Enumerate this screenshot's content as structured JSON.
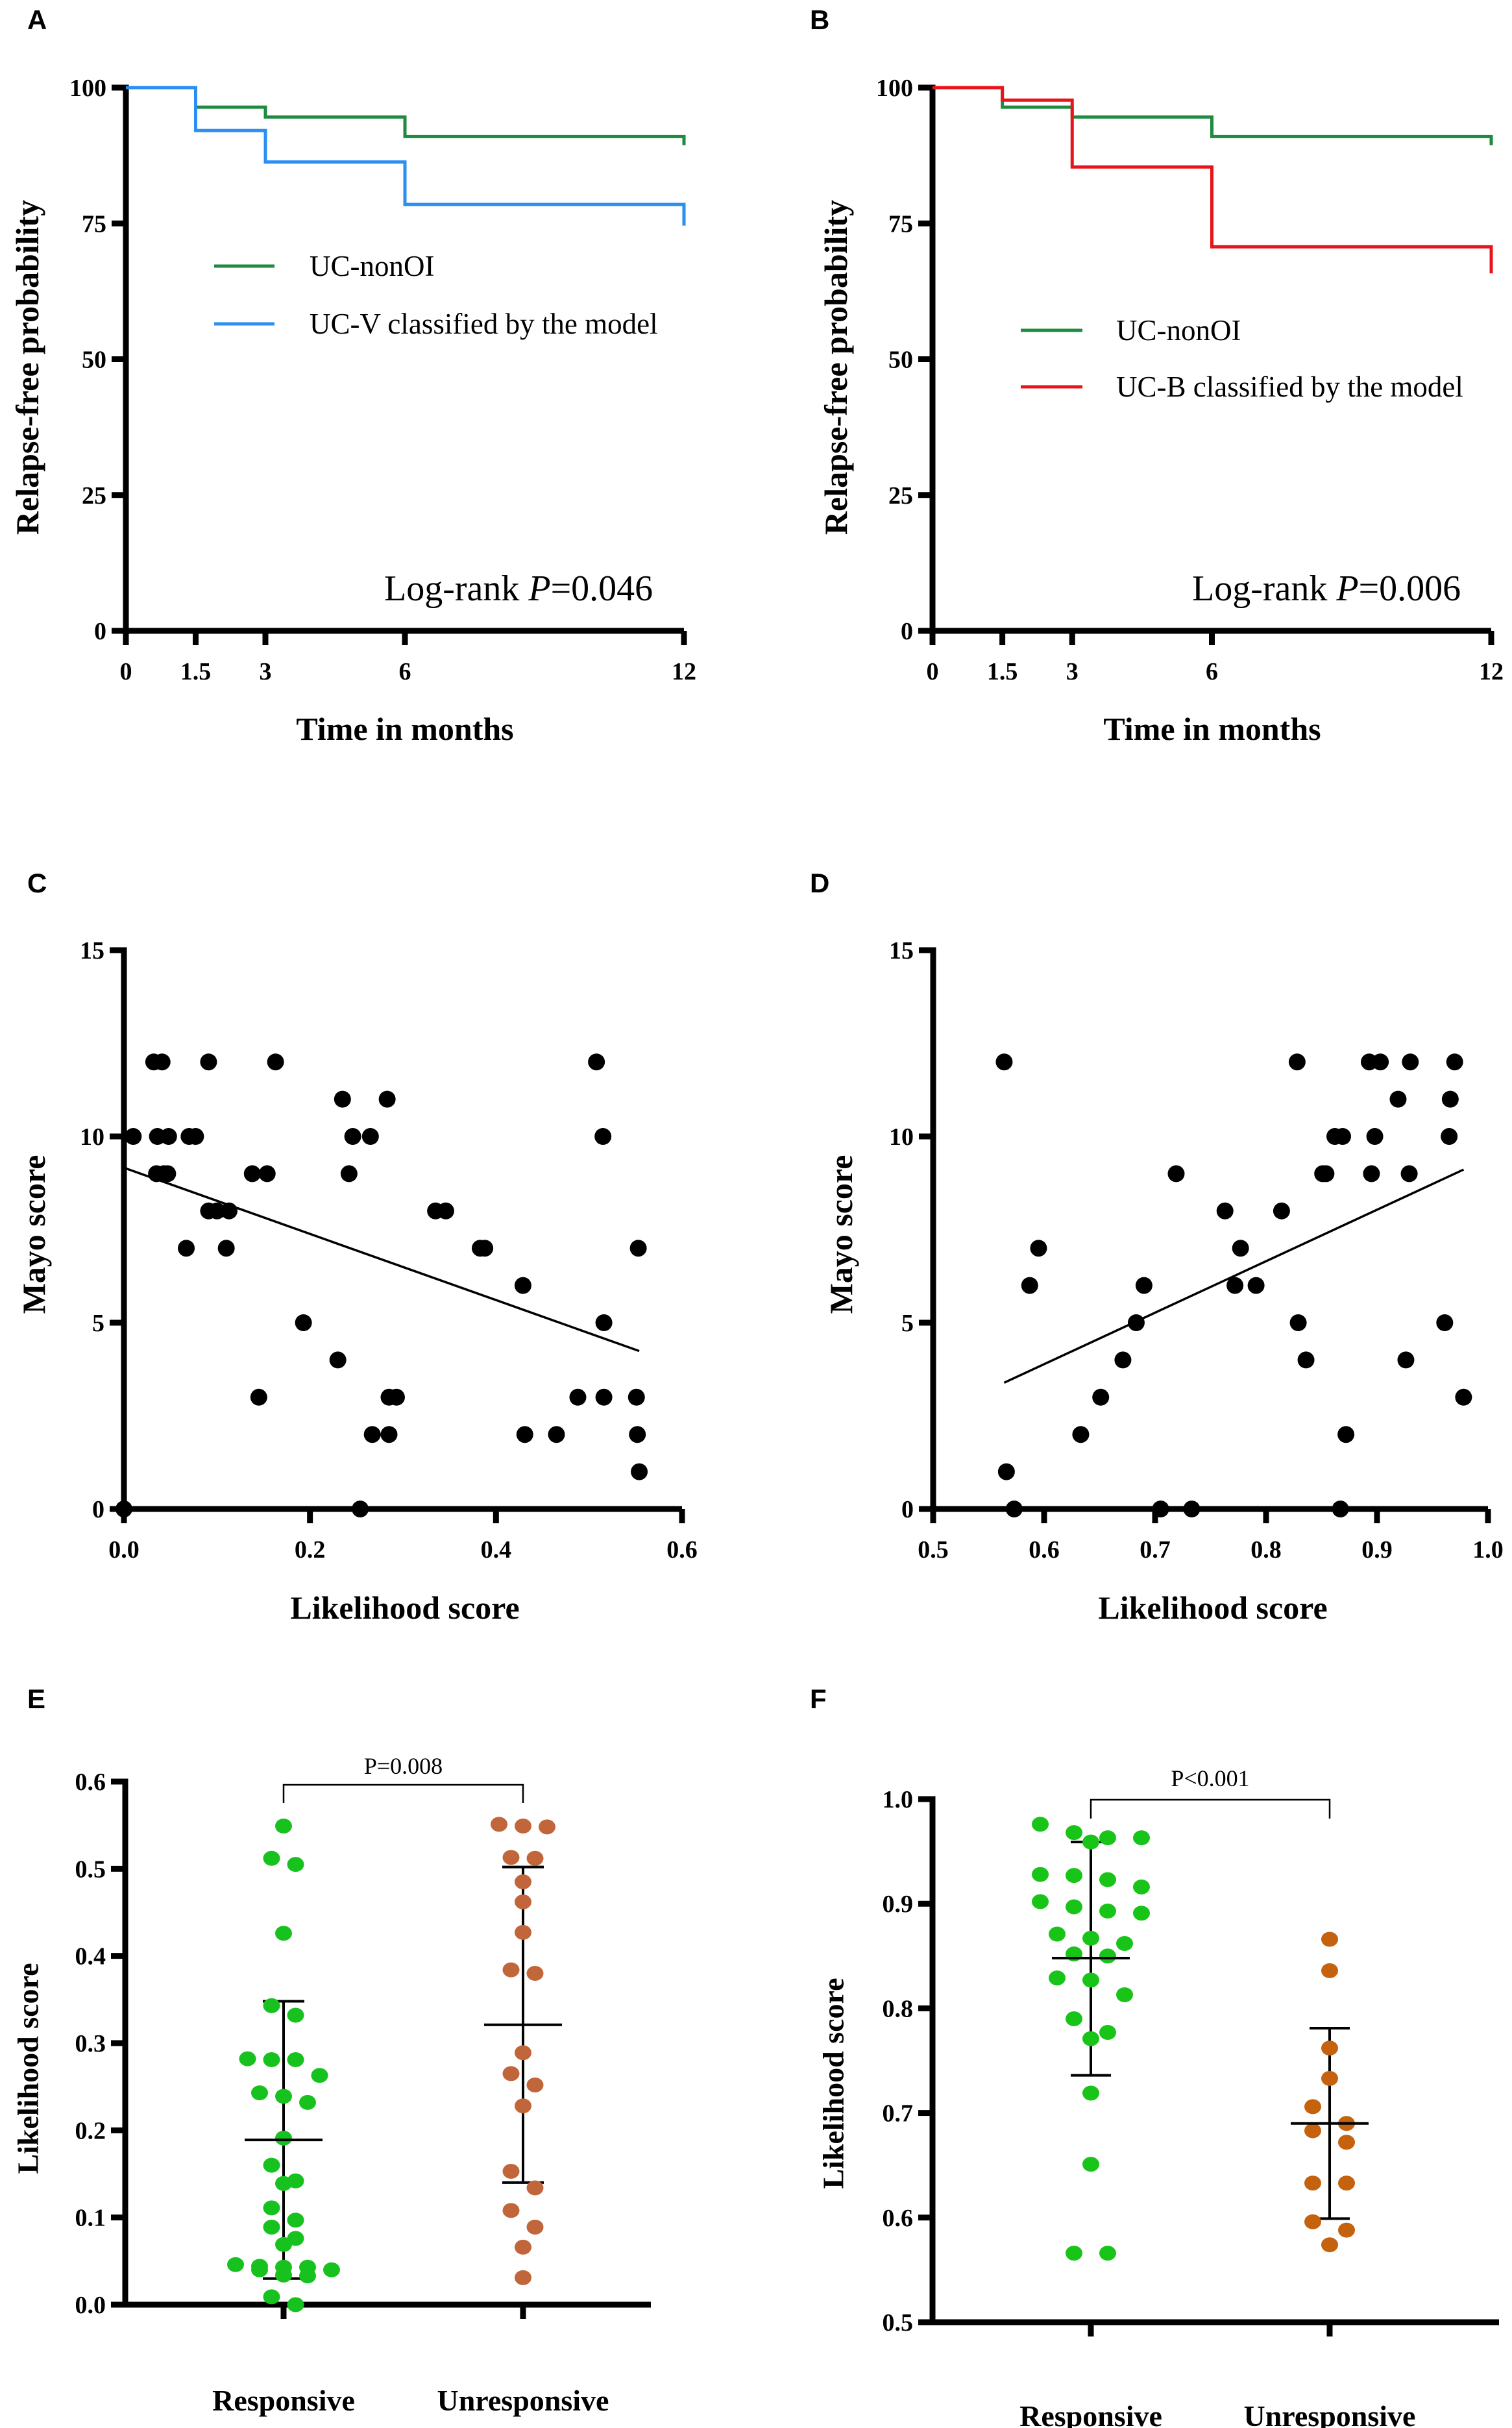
{
  "panel_letters": [
    "A",
    "B",
    "C",
    "D",
    "E",
    "F"
  ],
  "chart_data": [
    {
      "panel": "A",
      "type": "line",
      "subtype": "kaplan-meier",
      "xlabel": "Time in months",
      "ylabel": "Relapse-free probability",
      "xlim": [
        0,
        12
      ],
      "ylim": [
        0,
        100
      ],
      "xticks": [
        0,
        1.5,
        3,
        6,
        12
      ],
      "xtick_labels": [
        "0",
        "1.5",
        "3",
        "6",
        "12"
      ],
      "yticks": [
        0,
        25,
        50,
        75,
        100
      ],
      "ytick_labels": [
        "0",
        "25",
        "50",
        "75",
        "100"
      ],
      "legend_position": "center-right",
      "series": [
        {
          "name": "UC-nonOI",
          "color": "#1e8b3e",
          "steps": [
            [
              0,
              100
            ],
            [
              1.5,
              96.4
            ],
            [
              3,
              94.6
            ],
            [
              6,
              91.0
            ],
            [
              12,
              89.4
            ]
          ]
        },
        {
          "name": "UC-V classified by the model",
          "color": "#2a8ff0",
          "steps": [
            [
              0,
              100
            ],
            [
              1.5,
              92.1
            ],
            [
              3,
              86.3
            ],
            [
              6,
              78.5
            ],
            [
              12,
              74.6
            ]
          ]
        }
      ],
      "annotation": {
        "prefix": "Log-rank ",
        "italic": "P",
        "value": "=0.046"
      }
    },
    {
      "panel": "B",
      "type": "line",
      "subtype": "kaplan-meier",
      "xlabel": "Time in months",
      "ylabel": "Relapse-free probability",
      "xlim": [
        0,
        12
      ],
      "ylim": [
        0,
        100
      ],
      "xticks": [
        0,
        1.5,
        3,
        6,
        12
      ],
      "xtick_labels": [
        "0",
        "1.5",
        "3",
        "6",
        "12"
      ],
      "yticks": [
        0,
        25,
        50,
        75,
        100
      ],
      "ytick_labels": [
        "0",
        "25",
        "50",
        "75",
        "100"
      ],
      "legend_position": "center-right",
      "series": [
        {
          "name": "UC-nonOI",
          "color": "#1e8b3e",
          "steps": [
            [
              0,
              100
            ],
            [
              1.5,
              96.4
            ],
            [
              3,
              94.6
            ],
            [
              6,
              91.0
            ],
            [
              12,
              89.4
            ]
          ]
        },
        {
          "name": "UC-B classified by the model",
          "color": "#e8141b",
          "steps": [
            [
              0,
              100
            ],
            [
              1.5,
              97.7
            ],
            [
              3,
              85.4
            ],
            [
              6,
              70.7
            ],
            [
              12,
              65.8
            ]
          ]
        }
      ],
      "annotation": {
        "prefix": "Log-rank ",
        "italic": "P",
        "value": "=0.006"
      }
    },
    {
      "panel": "C",
      "type": "scatter",
      "xlabel": "Likelihood score",
      "ylabel": "Mayo score",
      "xlim": [
        0,
        0.6
      ],
      "ylim": [
        0,
        15
      ],
      "xticks": [
        0,
        0.2,
        0.4,
        0.6
      ],
      "xtick_labels": [
        "0.0",
        "0.2",
        "0.4",
        "0.6"
      ],
      "yticks": [
        0,
        5,
        10,
        15
      ],
      "ytick_labels": [
        "0",
        "5",
        "10",
        "15"
      ],
      "color": "#000000",
      "points": [
        [
          0.032,
          12
        ],
        [
          0.041,
          12
        ],
        [
          0.091,
          12
        ],
        [
          0.163,
          12
        ],
        [
          0.508,
          12
        ],
        [
          0.235,
          11
        ],
        [
          0.283,
          11
        ],
        [
          0.01,
          10
        ],
        [
          0.036,
          10
        ],
        [
          0.048,
          10
        ],
        [
          0.07,
          10
        ],
        [
          0.077,
          10
        ],
        [
          0.246,
          10
        ],
        [
          0.265,
          10
        ],
        [
          0.515,
          10
        ],
        [
          0.035,
          9
        ],
        [
          0.043,
          9
        ],
        [
          0.047,
          9
        ],
        [
          0.138,
          9
        ],
        [
          0.154,
          9
        ],
        [
          0.242,
          9
        ],
        [
          0.091,
          8
        ],
        [
          0.1,
          8
        ],
        [
          0.113,
          8
        ],
        [
          0.335,
          8
        ],
        [
          0.346,
          8
        ],
        [
          0.067,
          7
        ],
        [
          0.11,
          7
        ],
        [
          0.383,
          7
        ],
        [
          0.388,
          7
        ],
        [
          0.553,
          7
        ],
        [
          0.429,
          6
        ],
        [
          0.193,
          5
        ],
        [
          0.516,
          5
        ],
        [
          0.23,
          4
        ],
        [
          0.145,
          3
        ],
        [
          0.285,
          3
        ],
        [
          0.293,
          3
        ],
        [
          0.488,
          3
        ],
        [
          0.516,
          3
        ],
        [
          0.551,
          3
        ],
        [
          0.267,
          2
        ],
        [
          0.285,
          2
        ],
        [
          0.431,
          2
        ],
        [
          0.465,
          2
        ],
        [
          0.552,
          2
        ],
        [
          0.554,
          1
        ],
        [
          0.0,
          0
        ],
        [
          0.254,
          0
        ]
      ],
      "regression": [
        [
          0.0,
          9.16
        ],
        [
          0.554,
          4.24
        ]
      ]
    },
    {
      "panel": "D",
      "type": "scatter",
      "xlabel": "Likelihood score",
      "ylabel": "Mayo score",
      "xlim": [
        0.5,
        1.0
      ],
      "ylim": [
        0,
        15
      ],
      "xticks": [
        0.5,
        0.6,
        0.7,
        0.8,
        0.9,
        1.0
      ],
      "xtick_labels": [
        "0.5",
        "0.6",
        "0.7",
        "0.8",
        "0.9",
        "1.0"
      ],
      "yticks": [
        0,
        5,
        10,
        15
      ],
      "ytick_labels": [
        "0",
        "5",
        "10",
        "15"
      ],
      "color": "#000000",
      "points": [
        [
          0.564,
          12
        ],
        [
          0.828,
          12
        ],
        [
          0.893,
          12
        ],
        [
          0.903,
          12
        ],
        [
          0.93,
          12
        ],
        [
          0.97,
          12
        ],
        [
          0.919,
          11
        ],
        [
          0.966,
          11
        ],
        [
          0.862,
          10
        ],
        [
          0.869,
          10
        ],
        [
          0.898,
          10
        ],
        [
          0.965,
          10
        ],
        [
          0.719,
          9
        ],
        [
          0.851,
          9
        ],
        [
          0.854,
          9
        ],
        [
          0.895,
          9
        ],
        [
          0.929,
          9
        ],
        [
          0.763,
          8
        ],
        [
          0.814,
          8
        ],
        [
          0.595,
          7
        ],
        [
          0.777,
          7
        ],
        [
          0.587,
          6
        ],
        [
          0.69,
          6
        ],
        [
          0.772,
          6
        ],
        [
          0.791,
          6
        ],
        [
          0.683,
          5
        ],
        [
          0.829,
          5
        ],
        [
          0.961,
          5
        ],
        [
          0.671,
          4
        ],
        [
          0.836,
          4
        ],
        [
          0.926,
          4
        ],
        [
          0.651,
          3
        ],
        [
          0.978,
          3
        ],
        [
          0.633,
          2
        ],
        [
          0.872,
          2
        ],
        [
          0.566,
          1
        ],
        [
          0.573,
          0
        ],
        [
          0.705,
          0
        ],
        [
          0.733,
          0
        ],
        [
          0.867,
          0
        ]
      ],
      "regression": [
        [
          0.564,
          3.39
        ],
        [
          0.978,
          9.11
        ]
      ]
    },
    {
      "panel": "E",
      "type": "scatter",
      "subtype": "strip-plot-mean-sd",
      "xlabel": "",
      "ylabel": "Likelihood score",
      "categories": [
        "Responsive",
        "Unresponsive"
      ],
      "ylim": [
        0,
        0.6
      ],
      "yticks": [
        0,
        0.1,
        0.2,
        0.3,
        0.4,
        0.5,
        0.6
      ],
      "ytick_labels": [
        "0.0",
        "0.1",
        "0.2",
        "0.3",
        "0.4",
        "0.5",
        "0.6"
      ],
      "comparison": "P=0.008",
      "series": [
        {
          "name": "Responsive",
          "color": "#17c21f",
          "values": [
            0.549,
            0.512,
            0.505,
            0.426,
            0.343,
            0.332,
            0.282,
            0.281,
            0.281,
            0.263,
            0.243,
            0.239,
            0.232,
            0.191,
            0.16,
            0.142,
            0.139,
            0.111,
            0.097,
            0.089,
            0.076,
            0.069,
            0.046,
            0.044,
            0.043,
            0.043,
            0.04,
            0.04,
            0.034,
            0.033,
            0.009,
            0.0
          ],
          "mean": 0.189,
          "sd_upper": 0.348,
          "sd_lower": 0.03
        },
        {
          "name": "Unresponsive",
          "color": "#c0663a",
          "values": [
            0.551,
            0.549,
            0.548,
            0.513,
            0.512,
            0.485,
            0.462,
            0.427,
            0.384,
            0.38,
            0.289,
            0.265,
            0.252,
            0.228,
            0.153,
            0.134,
            0.108,
            0.089,
            0.066,
            0.031
          ],
          "mean": 0.321,
          "sd_upper": 0.502,
          "sd_lower": 0.14
        }
      ]
    },
    {
      "panel": "F",
      "type": "scatter",
      "subtype": "strip-plot-mean-sd",
      "xlabel": "",
      "ylabel": "Likelihood score",
      "categories": [
        "Responsive",
        "Unresponsive"
      ],
      "ylim": [
        0.5,
        1.0
      ],
      "yticks": [
        0.5,
        0.6,
        0.7,
        0.8,
        0.9,
        1.0
      ],
      "ytick_labels": [
        "0.5",
        "0.6",
        "0.7",
        "0.8",
        "0.9",
        "1.0"
      ],
      "comparison": "P<0.001",
      "series": [
        {
          "name": "Responsive",
          "color": "#19c418",
          "values": [
            0.976,
            0.968,
            0.963,
            0.963,
            0.959,
            0.928,
            0.927,
            0.923,
            0.916,
            0.902,
            0.897,
            0.893,
            0.891,
            0.871,
            0.867,
            0.862,
            0.852,
            0.85,
            0.829,
            0.827,
            0.813,
            0.79,
            0.777,
            0.771,
            0.719,
            0.651,
            0.566,
            0.566
          ],
          "mean": 0.848,
          "sd_upper": 0.959,
          "sd_lower": 0.736
        },
        {
          "name": "Unresponsive",
          "color": "#c4620e",
          "values": [
            0.866,
            0.836,
            0.762,
            0.733,
            0.706,
            0.69,
            0.683,
            0.672,
            0.633,
            0.633,
            0.596,
            0.588,
            0.574
          ],
          "mean": 0.69,
          "sd_upper": 0.781,
          "sd_lower": 0.599
        }
      ]
    }
  ]
}
